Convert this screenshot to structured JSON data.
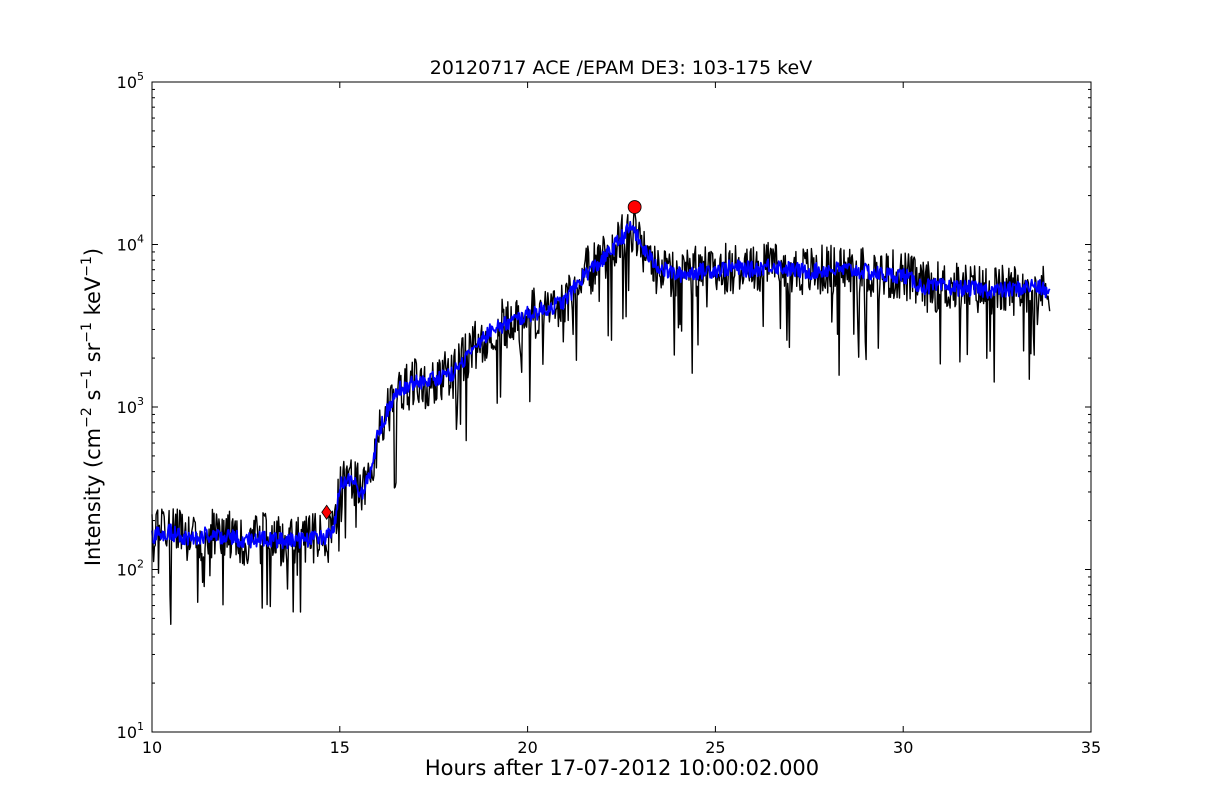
{
  "chart_data": {
    "type": "line",
    "title": "20120717 ACE /EPAM DE3: 103-175 keV",
    "xlabel": "Hours after 17-07-2012 10:00:02.000",
    "ylabel_parts": {
      "prefix": "Intensity (cm",
      "exp1": "−2",
      "s": " s",
      "exp2": "−1",
      "sr": " sr",
      "exp3": "−1",
      "kev": " keV",
      "exp4": "−1",
      "suffix": ")"
    },
    "xlim": [
      10,
      35
    ],
    "ylim": [
      10,
      100000
    ],
    "yscale": "log",
    "grid": false,
    "x_ticks": [
      10,
      15,
      20,
      25,
      30,
      35
    ],
    "x_tick_labels": [
      "10",
      "15",
      "20",
      "25",
      "30",
      "35"
    ],
    "y_ticks": [
      10,
      100,
      1000,
      10000,
      100000
    ],
    "y_tick_labels": [
      {
        "base": "10",
        "exp": "1"
      },
      {
        "base": "10",
        "exp": "2"
      },
      {
        "base": "10",
        "exp": "3"
      },
      {
        "base": "10",
        "exp": "4"
      },
      {
        "base": "10",
        "exp": "5"
      }
    ],
    "series": [
      {
        "role": "raw",
        "color": "#000000",
        "x": [
          10.0,
          10.5,
          11.0,
          11.5,
          12.0,
          12.5,
          13.0,
          13.5,
          14.0,
          14.5,
          14.7,
          14.9,
          15.0,
          15.3,
          15.6,
          15.8,
          16.0,
          16.3,
          16.6,
          17.0,
          17.5,
          18.0,
          18.5,
          19.0,
          19.5,
          20.0,
          20.5,
          21.0,
          21.5,
          22.0,
          22.5,
          22.8,
          23.0,
          23.3,
          23.6,
          24.0,
          24.5,
          25.0,
          25.5,
          26.0,
          26.5,
          27.0,
          27.5,
          28.0,
          28.5,
          29.0,
          29.5,
          30.0,
          30.5,
          31.0,
          31.5,
          32.0,
          32.5,
          33.0,
          33.5,
          33.9
        ],
        "y": [
          160,
          170,
          150,
          165,
          160,
          150,
          155,
          150,
          150,
          155,
          160,
          200,
          330,
          350,
          300,
          380,
          650,
          1000,
          1300,
          1400,
          1500,
          1600,
          2200,
          3000,
          3300,
          3700,
          4000,
          4500,
          6500,
          8000,
          11000,
          13000,
          10000,
          8000,
          7000,
          6500,
          6800,
          7000,
          7200,
          7000,
          7500,
          7000,
          6800,
          7000,
          7000,
          6800,
          6500,
          6500,
          5500,
          5500,
          5400,
          5300,
          5200,
          5300,
          5600,
          5000
        ],
        "noise": 0.16
      },
      {
        "role": "smoothed",
        "color": "#0000ff",
        "x": [
          10.0,
          10.5,
          11.0,
          11.5,
          12.0,
          12.5,
          13.0,
          13.5,
          14.0,
          14.5,
          14.7,
          14.9,
          15.0,
          15.3,
          15.6,
          15.8,
          16.0,
          16.3,
          16.6,
          17.0,
          17.5,
          18.0,
          18.5,
          19.0,
          19.5,
          20.0,
          20.5,
          21.0,
          21.5,
          22.0,
          22.5,
          22.8,
          23.0,
          23.3,
          23.6,
          24.0,
          24.5,
          25.0,
          25.5,
          26.0,
          26.5,
          27.0,
          27.5,
          28.0,
          28.5,
          29.0,
          29.5,
          30.0,
          30.5,
          31.0,
          31.5,
          32.0,
          32.5,
          33.0,
          33.5,
          33.9
        ],
        "y": [
          160,
          170,
          150,
          165,
          160,
          150,
          155,
          150,
          150,
          155,
          160,
          200,
          330,
          350,
          300,
          380,
          650,
          1000,
          1300,
          1400,
          1500,
          1600,
          2200,
          3000,
          3300,
          3700,
          4000,
          4500,
          6500,
          8000,
          11000,
          13000,
          10000,
          8000,
          7000,
          6500,
          6800,
          7000,
          7200,
          7000,
          7500,
          7000,
          6800,
          7000,
          7000,
          6800,
          6500,
          6500,
          5500,
          5500,
          5400,
          5300,
          5200,
          5300,
          5600,
          5000
        ],
        "noise": 0.05
      }
    ],
    "markers": [
      {
        "name": "onset",
        "shape": "diamond",
        "x": 14.65,
        "y": 225,
        "color": "#ff0000"
      },
      {
        "name": "peak",
        "shape": "circle",
        "x": 22.85,
        "y": 17000,
        "color": "#ff0000"
      }
    ]
  }
}
